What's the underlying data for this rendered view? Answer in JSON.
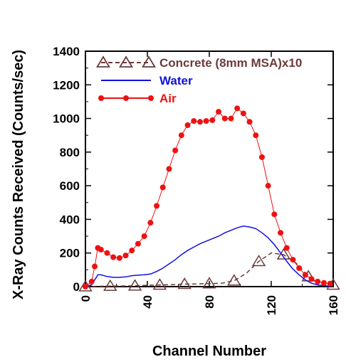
{
  "chart_data": {
    "type": "line",
    "xlabel": "Channel Number",
    "ylabel": "X-Ray Counts Received (Counts/sec)",
    "xlim": [
      0,
      160
    ],
    "ylim": [
      0,
      1400
    ],
    "x_ticks": [
      0,
      40,
      80,
      120,
      160
    ],
    "y_ticks": [
      0,
      200,
      400,
      600,
      800,
      1000,
      1200,
      1400
    ],
    "legend_position": "top-right",
    "grid": false,
    "series": [
      {
        "name": "Concrete (8mm MSA)x10",
        "color": "#6b3b3b",
        "marker": "triangle-open",
        "line": "dashed",
        "x": [
          0,
          8,
          16,
          24,
          32,
          40,
          48,
          56,
          64,
          72,
          80,
          88,
          96,
          104,
          112,
          120,
          128,
          136,
          144,
          152,
          160
        ],
        "values": [
          0,
          2,
          3,
          4,
          5,
          8,
          10,
          12,
          15,
          16,
          18,
          20,
          35,
          80,
          150,
          200,
          190,
          140,
          60,
          20,
          10
        ]
      },
      {
        "name": "Water",
        "color": "#1010e0",
        "marker": "none",
        "line": "solid",
        "x": [
          0,
          4,
          6,
          8,
          10,
          14,
          18,
          22,
          26,
          30,
          34,
          38,
          42,
          46,
          50,
          54,
          58,
          62,
          66,
          70,
          74,
          78,
          82,
          86,
          90,
          94,
          98,
          102,
          106,
          110,
          114,
          118,
          122,
          126,
          130,
          134,
          138,
          142,
          146,
          150,
          154,
          158
        ],
        "values": [
          0,
          10,
          40,
          70,
          70,
          60,
          55,
          55,
          58,
          65,
          68,
          70,
          75,
          90,
          110,
          135,
          160,
          190,
          215,
          235,
          255,
          270,
          285,
          300,
          320,
          335,
          350,
          360,
          355,
          345,
          320,
          290,
          250,
          200,
          150,
          105,
          70,
          40,
          20,
          10,
          5,
          3
        ]
      },
      {
        "name": "Air",
        "color": "#ee1111",
        "marker": "filled-circle",
        "line": "solid",
        "x": [
          0,
          4,
          6,
          8,
          10,
          14,
          18,
          22,
          26,
          30,
          34,
          38,
          42,
          46,
          50,
          54,
          58,
          62,
          66,
          70,
          74,
          78,
          82,
          86,
          90,
          94,
          98,
          102,
          106,
          110,
          114,
          118,
          122,
          126,
          130,
          134,
          138,
          142,
          146,
          150,
          154,
          158
        ],
        "values": [
          0,
          30,
          120,
          230,
          220,
          200,
          175,
          170,
          185,
          215,
          255,
          300,
          380,
          480,
          590,
          700,
          810,
          900,
          960,
          985,
          980,
          985,
          990,
          1040,
          1000,
          1000,
          1060,
          1030,
          980,
          900,
          770,
          600,
          430,
          320,
          230,
          160,
          110,
          70,
          45,
          30,
          22,
          18
        ]
      }
    ]
  }
}
